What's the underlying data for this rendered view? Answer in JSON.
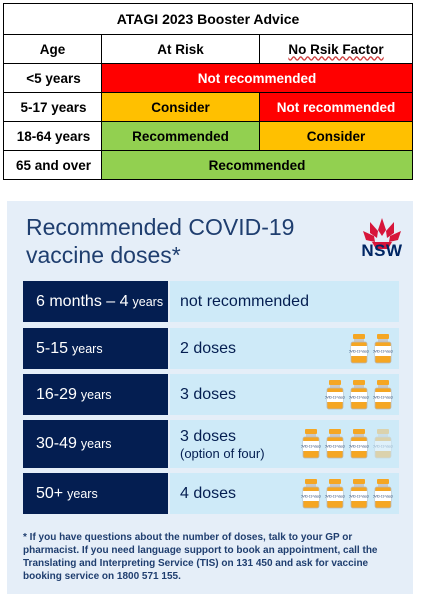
{
  "atagi": {
    "title": "ATAGI 2023 Booster Advice",
    "headers": {
      "age": "Age",
      "at_risk": "At Risk",
      "no_risk": "No Rsik Factor"
    },
    "rows": [
      {
        "age": "<5 years",
        "merged": "Not recommended"
      },
      {
        "age": "5-17 years",
        "at_risk": "Consider",
        "no_risk": "Not recommended"
      },
      {
        "age": "18-64 years",
        "at_risk": "Recommended",
        "no_risk": "Consider"
      },
      {
        "age": "65 and over",
        "merged": "Recommended"
      }
    ],
    "colors": {
      "red": "#ff0000",
      "orange": "#ffc000",
      "green": "#92d050"
    }
  },
  "nsw": {
    "title_line1": "Recommended COVID-19",
    "title_line2": "vaccine doses*",
    "logo_label": "NSW",
    "vial_label": "COVID-19 Vaccine",
    "rows": [
      {
        "num": "6 months – 4",
        "unit": "years",
        "doses": "not recommended",
        "note": "",
        "vials": 0,
        "faded": 0
      },
      {
        "num": "5-15",
        "unit": "years",
        "doses": "2 doses",
        "note": "",
        "vials": 2,
        "faded": 0
      },
      {
        "num": "16-29",
        "unit": "years",
        "doses": "3 doses",
        "note": "",
        "vials": 3,
        "faded": 0
      },
      {
        "num": "30-49",
        "unit": "years",
        "doses": "3 doses",
        "note": "(option of four)",
        "vials": 3,
        "faded": 1
      },
      {
        "num": "50+",
        "unit": "years",
        "doses": "4 doses",
        "note": "",
        "vials": 4,
        "faded": 0
      }
    ],
    "footnote": "* If you have questions about the number of doses, talk to your GP or pharmacist. If you need language support to book an appointment, call the Translating and Interpreting Service (TIS) on 131 450 and ask for vaccine booking service on 1800 571 155."
  }
}
